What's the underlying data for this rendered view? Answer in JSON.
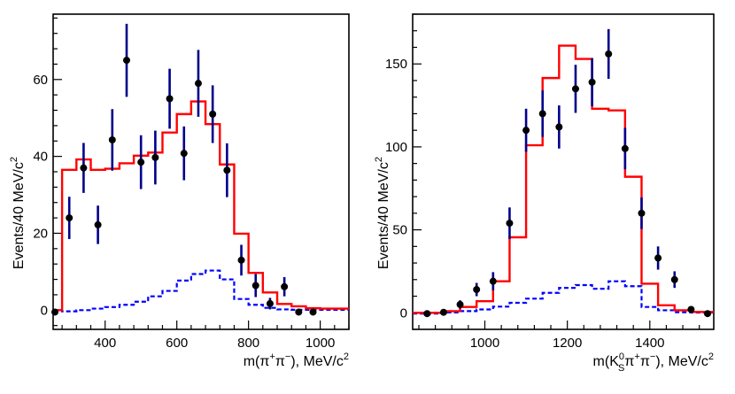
{
  "chart_data": [
    {
      "type": "histogram-with-points",
      "xlabel_parts": [
        "m(π",
        "+",
        "π",
        "−",
        "), MeV/c",
        "2"
      ],
      "ylabel_parts": [
        "Events/40 MeV/c",
        "2"
      ],
      "xlim": [
        255,
        1080
      ],
      "ylim": [
        -5,
        77
      ],
      "x_ticks": [
        400,
        600,
        800,
        1000
      ],
      "y_ticks": [
        0,
        20,
        40,
        60
      ],
      "x_minor_step": 40,
      "y_minor_step": 4,
      "hist_colors": {
        "total": "#ff0000",
        "background": "#0000ff"
      },
      "point_colors": {
        "marker": "#000000",
        "error": "#00008b"
      },
      "bin_edges": [
        255,
        280,
        320,
        360,
        400,
        440,
        480,
        520,
        560,
        600,
        640,
        680,
        720,
        760,
        800,
        840,
        880,
        920,
        960,
        1000,
        1080
      ],
      "total_fit": [
        0,
        36.5,
        39.2,
        36.5,
        36.8,
        38.2,
        40.2,
        41.0,
        46.2,
        51.0,
        54.3,
        48.4,
        37.9,
        19.9,
        9.7,
        4.6,
        1.6,
        1.0,
        0.5,
        0.4
      ],
      "background_fit": [
        0,
        -0.3,
        0.0,
        0.4,
        0.8,
        1.4,
        2.2,
        3.6,
        5.0,
        7.7,
        9.4,
        10.3,
        8.0,
        2.9,
        1.4,
        0.6,
        0.2,
        0.1,
        0.1,
        0.1
      ],
      "points": [
        {
          "x": 260,
          "y": -0.5,
          "err": 0.7
        },
        {
          "x": 300,
          "y": 24,
          "err": 5.5
        },
        {
          "x": 340,
          "y": 37,
          "err": 6.5
        },
        {
          "x": 380,
          "y": 22.2,
          "err": 5.0
        },
        {
          "x": 420,
          "y": 44.3,
          "err": 8.0
        },
        {
          "x": 460,
          "y": 65,
          "err": 9.5
        },
        {
          "x": 500,
          "y": 38.5,
          "err": 7.0
        },
        {
          "x": 540,
          "y": 39.7,
          "err": 7.0
        },
        {
          "x": 580,
          "y": 55,
          "err": 7.8
        },
        {
          "x": 620,
          "y": 40.8,
          "err": 7.0
        },
        {
          "x": 660,
          "y": 59,
          "err": 8.7
        },
        {
          "x": 700,
          "y": 51,
          "err": 7.5
        },
        {
          "x": 740,
          "y": 36.4,
          "err": 7.0
        },
        {
          "x": 780,
          "y": 13,
          "err": 4.0
        },
        {
          "x": 820,
          "y": 6.4,
          "err": 3.0
        },
        {
          "x": 860,
          "y": 1.7,
          "err": 1.5
        },
        {
          "x": 900,
          "y": 6.1,
          "err": 2.5
        },
        {
          "x": 940,
          "y": -0.5,
          "err": 0.8
        },
        {
          "x": 980,
          "y": -0.5,
          "err": 0.6
        }
      ]
    },
    {
      "type": "histogram-with-points",
      "xlabel_parts": [
        "m(K",
        "0",
        "S",
        "π",
        "+",
        "π",
        "−",
        "), MeV/c",
        "2"
      ],
      "ylabel_parts": [
        "Events/40 MeV/c",
        "2"
      ],
      "xlim": [
        825,
        1555
      ],
      "ylim": [
        -10,
        180
      ],
      "x_ticks": [
        1000,
        1200,
        1400
      ],
      "y_ticks": [
        0,
        50,
        100,
        150
      ],
      "x_minor_step": 40,
      "y_minor_step": 10,
      "hist_colors": {
        "total": "#ff0000",
        "background": "#0000ff"
      },
      "point_colors": {
        "marker": "#000000",
        "error": "#00008b"
      },
      "bin_edges": [
        825,
        900,
        940,
        980,
        1020,
        1060,
        1100,
        1140,
        1180,
        1220,
        1260,
        1300,
        1340,
        1380,
        1420,
        1460,
        1500,
        1555
      ],
      "total_fit": [
        0,
        1.0,
        3.5,
        7.0,
        19.0,
        45.5,
        101.0,
        141.5,
        161.0,
        153.0,
        123.0,
        122.0,
        82.0,
        17.5,
        4.5,
        1.5,
        0.5
      ],
      "background_fit": [
        -0.5,
        0.2,
        1.0,
        2.0,
        3.7,
        6.0,
        8.5,
        12.0,
        15.0,
        16.7,
        14.5,
        19.0,
        16.0,
        3.5,
        1.5,
        0.3,
        0.1
      ],
      "points": [
        {
          "x": 860,
          "y": -0.5,
          "err": 0.6
        },
        {
          "x": 900,
          "y": 0.3,
          "err": 1.2
        },
        {
          "x": 940,
          "y": 5,
          "err": 2.5
        },
        {
          "x": 980,
          "y": 14,
          "err": 4.0
        },
        {
          "x": 1020,
          "y": 19,
          "err": 5.5
        },
        {
          "x": 1060,
          "y": 54,
          "err": 9.5
        },
        {
          "x": 1100,
          "y": 110,
          "err": 13.0
        },
        {
          "x": 1140,
          "y": 120,
          "err": 14.0
        },
        {
          "x": 1180,
          "y": 112,
          "err": 13.0
        },
        {
          "x": 1220,
          "y": 135,
          "err": 14.5
        },
        {
          "x": 1260,
          "y": 139,
          "err": 14.5
        },
        {
          "x": 1300,
          "y": 156,
          "err": 15.0
        },
        {
          "x": 1340,
          "y": 99,
          "err": 12.5
        },
        {
          "x": 1380,
          "y": 60,
          "err": 9.5
        },
        {
          "x": 1420,
          "y": 33,
          "err": 7.0
        },
        {
          "x": 1460,
          "y": 20,
          "err": 5.0
        },
        {
          "x": 1500,
          "y": 2,
          "err": 1.5
        },
        {
          "x": 1540,
          "y": -0.5,
          "err": 0.8
        }
      ]
    }
  ]
}
